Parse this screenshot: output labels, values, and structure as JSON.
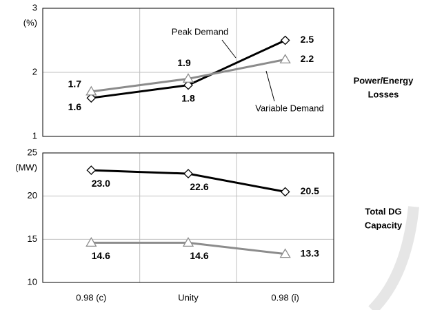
{
  "chart_data": [
    {
      "type": "line",
      "y_unit": "(%)",
      "side_label": [
        "Power/Energy",
        "Losses"
      ],
      "categories": [
        "0.98 (c)",
        "Unity",
        "0.98 (i)"
      ],
      "ylim": [
        1,
        3
      ],
      "yticks": [
        1,
        2,
        3
      ],
      "grid": true,
      "series": [
        {
          "name": "Peak Demand",
          "color": "#000000",
          "marker": "diamond",
          "values": [
            1.6,
            1.8,
            2.5
          ]
        },
        {
          "name": "Variable Demand",
          "color": "#8c8c8c",
          "marker": "triangle",
          "values": [
            1.7,
            1.9,
            2.2
          ]
        }
      ]
    },
    {
      "type": "line",
      "y_unit": "(MW)",
      "side_label": [
        "Total DG",
        "Capacity"
      ],
      "categories": [
        "0.98 (c)",
        "Unity",
        "0.98 (i)"
      ],
      "ylim": [
        10,
        25
      ],
      "yticks": [
        10,
        15,
        20,
        25
      ],
      "grid": true,
      "series": [
        {
          "color": "#000000",
          "marker": "diamond",
          "values": [
            23.0,
            22.6,
            20.5
          ],
          "value_labels": [
            "23.0",
            "22.6",
            "20.5"
          ]
        },
        {
          "color": "#8c8c8c",
          "marker": "triangle",
          "values": [
            14.6,
            14.6,
            13.3
          ],
          "value_labels": [
            "14.6",
            "14.6",
            "13.3"
          ]
        }
      ]
    }
  ]
}
